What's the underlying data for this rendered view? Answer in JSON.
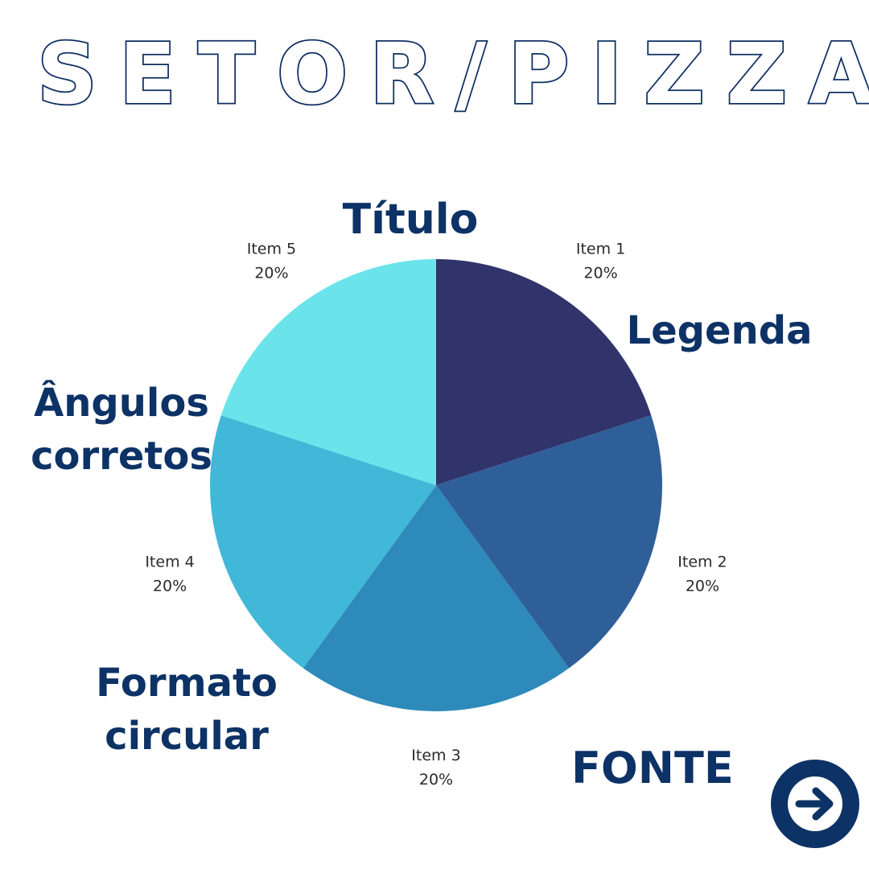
{
  "page": {
    "heading": "SETOR/PIZZA",
    "notes": {
      "title": [
        "Título"
      ],
      "legend": [
        "Legenda"
      ],
      "angles": [
        "Ângulos",
        "corretos"
      ],
      "format": [
        "Formato",
        "circular"
      ],
      "source": [
        "FONTE"
      ]
    },
    "next_button_icon": "arrow-right-icon"
  },
  "chart_data": {
    "type": "pie",
    "categories": [
      "Item 1",
      "Item 2",
      "Item 3",
      "Item 4",
      "Item 5"
    ],
    "values": [
      20,
      20,
      20,
      20,
      20
    ],
    "value_labels": [
      "20%",
      "20%",
      "20%",
      "20%",
      "20%"
    ],
    "start_angle_deg": 0,
    "direction": "clockwise",
    "colors": [
      "#30346b",
      "#2f5f98",
      "#2d8aba",
      "#42b8d8",
      "#6ae4ea"
    ],
    "legend": "none"
  }
}
